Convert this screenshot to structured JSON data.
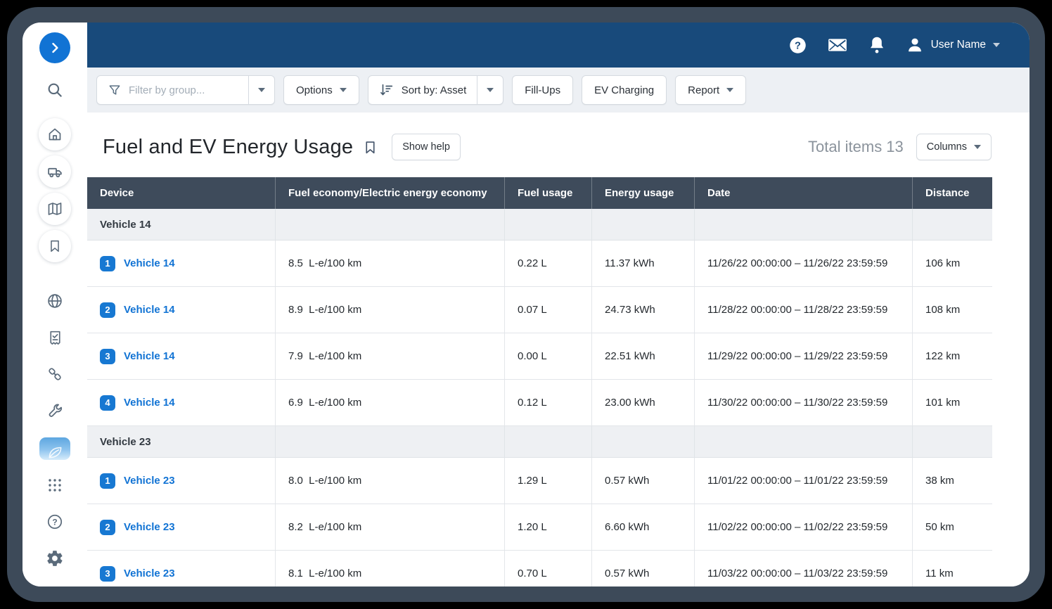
{
  "colors": {
    "header_blue": "#184a7b",
    "table_header": "#3e4b5b",
    "accent_blue": "#1173d4",
    "badge_blue": "#1778d2",
    "group_row_bg": "#eef0f3",
    "frame": "#3d4a59"
  },
  "topbar": {
    "user_name": "User Name",
    "icons": [
      "help-icon",
      "mail-icon",
      "bell-icon",
      "user-icon",
      "caret-down-icon"
    ]
  },
  "sidebar": {
    "icons": [
      "expand-chevron-icon",
      "search-icon",
      "home-icon",
      "vehicle-icon",
      "map-icon",
      "bookmark-icon",
      "globe-icon",
      "productivity-report-icon",
      "zones-link-icon",
      "maintenance-wrench-icon",
      "fuel-ev-leaf-icon",
      "apps-grid-icon",
      "support-question-icon",
      "settings-gear-icon"
    ],
    "active_item": "fuel-ev-energy"
  },
  "toolbar": {
    "filter_placeholder": "Filter by group...",
    "filter_icon": "funnel-icon",
    "options_label": "Options",
    "sort_icon": "sort-amount-icon",
    "sort_label": "Sort by: Asset",
    "fill_ups_label": "Fill-Ups",
    "ev_charging_label": "EV Charging",
    "report_label": "Report"
  },
  "page": {
    "title": "Fuel and EV Energy Usage",
    "title_bookmark_icon": "bookmark-outline-icon",
    "show_help_label": "Show help",
    "total_items_label": "Total items 13",
    "columns_label": "Columns"
  },
  "table": {
    "headers": [
      "Device",
      "Fuel economy/Electric energy economy",
      "Fuel usage",
      "Energy usage",
      "Date",
      "Distance"
    ],
    "groups": [
      {
        "name": "Vehicle 14",
        "rows": [
          {
            "index": "1",
            "device": "Vehicle 14",
            "economy": "8.5  L-e/100 km",
            "fuel": "0.22 L",
            "energy": "11.37 kWh",
            "date": "11/26/22 00:00:00 – 11/26/22 23:59:59",
            "distance": "106 km"
          },
          {
            "index": "2",
            "device": "Vehicle 14",
            "economy": "8.9  L-e/100 km",
            "fuel": "0.07 L",
            "energy": "24.73 kWh",
            "date": "11/28/22 00:00:00 – 11/28/22 23:59:59",
            "distance": "108 km"
          },
          {
            "index": "3",
            "device": "Vehicle 14",
            "economy": "7.9  L-e/100 km",
            "fuel": "0.00 L",
            "energy": "22.51 kWh",
            "date": "11/29/22 00:00:00 – 11/29/22 23:59:59",
            "distance": "122 km"
          },
          {
            "index": "4",
            "device": "Vehicle 14",
            "economy": "6.9  L-e/100 km",
            "fuel": "0.12 L",
            "energy": "23.00 kWh",
            "date": "11/30/22 00:00:00 – 11/30/22 23:59:59",
            "distance": "101 km"
          }
        ]
      },
      {
        "name": "Vehicle 23",
        "rows": [
          {
            "index": "1",
            "device": "Vehicle 23",
            "economy": "8.0  L-e/100 km",
            "fuel": "1.29 L",
            "energy": "0.57 kWh",
            "date": "11/01/22 00:00:00 – 11/01/22 23:59:59",
            "distance": "38 km"
          },
          {
            "index": "2",
            "device": "Vehicle 23",
            "economy": "8.2  L-e/100 km",
            "fuel": "1.20 L",
            "energy": "6.60 kWh",
            "date": "11/02/22 00:00:00 – 11/02/22 23:59:59",
            "distance": "50 km"
          },
          {
            "index": "3",
            "device": "Vehicle 23",
            "economy": "8.1  L-e/100 km",
            "fuel": "0.70 L",
            "energy": "0.57 kWh",
            "date": "11/03/22 00:00:00 – 11/03/22 23:59:59",
            "distance": "11 km"
          }
        ]
      }
    ]
  }
}
